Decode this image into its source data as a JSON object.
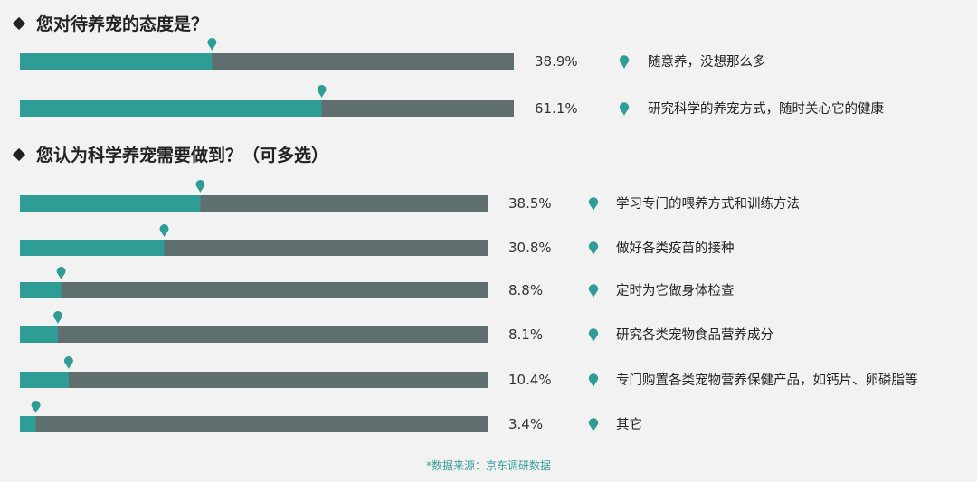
{
  "chart_data": [
    {
      "type": "bar",
      "title": "您对待养宠的态度是？",
      "xlim": [
        0,
        100
      ],
      "categories": [
        "随意养，没想那么多",
        "研究科学的养宠方式，随时关心它的健康"
      ],
      "values": [
        38.9,
        61.1
      ],
      "value_labels": [
        "38.9%",
        "61.1%"
      ]
    },
    {
      "type": "bar",
      "title": "您认为科学养宠需要做到？（可多选）",
      "xlim": [
        0,
        100
      ],
      "categories": [
        "学习专门的喂养方式和训练方法",
        "做好各类疫苗的接种",
        "定时为它做身体检查",
        "研究各类宠物食品营养成分",
        "专门购置各类宠物营养保健产品，如钙片、卵磷脂等",
        "其它"
      ],
      "values": [
        38.5,
        30.8,
        8.8,
        8.1,
        10.4,
        3.4
      ],
      "value_labels": [
        "38.5%",
        "30.8%",
        "8.8%",
        "8.1%",
        "10.4%",
        "3.4%"
      ]
    }
  ],
  "colors": {
    "fill": "#2f9c96",
    "track": "#5f6e6e",
    "marker": "#2f9c96",
    "background": "#f2f2f2"
  },
  "icons": {
    "marker": "map-pin-icon",
    "bullet": "diamond-icon"
  },
  "source": "*数据来源：京东调研数据"
}
